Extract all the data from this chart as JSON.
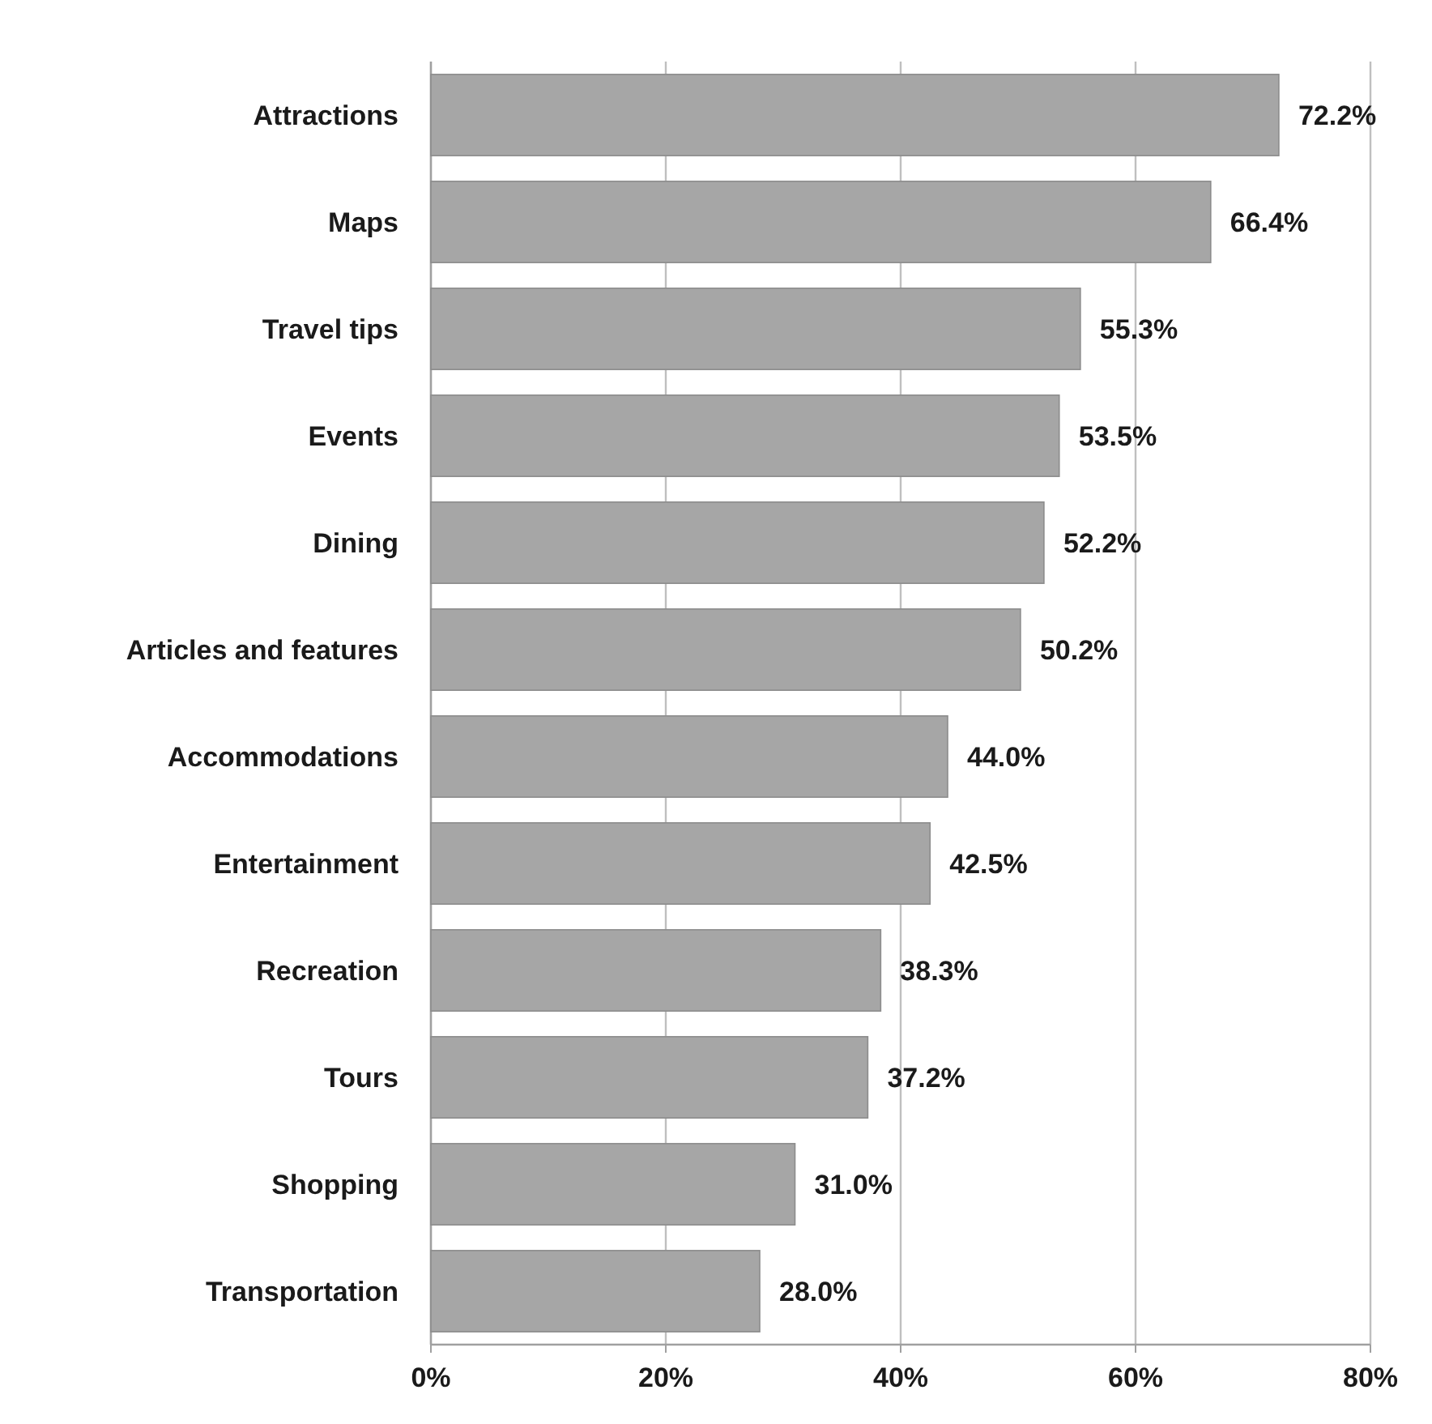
{
  "chart_data": {
    "type": "bar",
    "orientation": "horizontal",
    "categories": [
      "Attractions",
      "Maps",
      "Travel tips",
      "Events",
      "Dining",
      "Articles and features",
      "Accommodations",
      "Entertainment",
      "Recreation",
      "Tours",
      "Shopping",
      "Transportation"
    ],
    "values": [
      72.2,
      66.4,
      55.3,
      53.5,
      52.2,
      50.2,
      44.0,
      42.5,
      38.3,
      37.2,
      31.0,
      28.0
    ],
    "value_labels": [
      "72.2%",
      "66.4%",
      "55.3%",
      "53.5%",
      "52.2%",
      "50.2%",
      "44.0%",
      "42.5%",
      "38.3%",
      "37.2%",
      "31.0%",
      "28.0%"
    ],
    "color": "#a6a6a6",
    "xlim": [
      0,
      80
    ],
    "xticks": [
      {
        "value": 0,
        "label": "0%"
      },
      {
        "value": 20,
        "label": "20%"
      },
      {
        "value": 40,
        "label": "40%"
      },
      {
        "value": 60,
        "label": "60%"
      },
      {
        "value": 80,
        "label": "80%"
      }
    ],
    "grid": "x"
  }
}
